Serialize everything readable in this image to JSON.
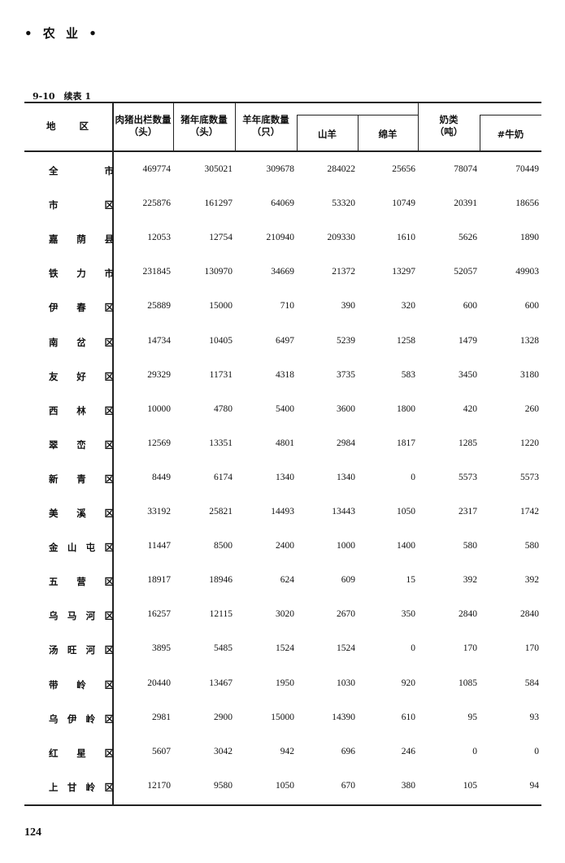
{
  "running_head": "• 农 业 •",
  "caption": "9-10　续表 1",
  "columns": {
    "region": "地　　区",
    "pork_out": "肉猪出栏数量（头）",
    "pigs_end": "猪年底数量（头）",
    "sheep_end": "羊年底数量（只）",
    "goats": "山羊",
    "sheep": "绵羊",
    "milk": "奶类（吨）",
    "cow_milk": "#牛奶"
  },
  "header_lines": {
    "pork_out": [
      "肉猪出栏数量",
      "（头）"
    ],
    "pigs_end": [
      "猪年底数量",
      "（头）"
    ],
    "sheep_end": [
      "羊年底数量",
      "（只）"
    ],
    "milk": [
      "奶类",
      "（吨）"
    ]
  },
  "rows": [
    {
      "region": "全　市",
      "values": [
        "469774",
        "305021",
        "309678",
        "284022",
        "25656",
        "78074",
        "70449"
      ]
    },
    {
      "region": "市　区",
      "values": [
        "225876",
        "161297",
        "64069",
        "53320",
        "10749",
        "20391",
        "18656"
      ]
    },
    {
      "region": "嘉荫县",
      "values": [
        "12053",
        "12754",
        "210940",
        "209330",
        "1610",
        "5626",
        "1890"
      ]
    },
    {
      "region": "铁力市",
      "values": [
        "231845",
        "130970",
        "34669",
        "21372",
        "13297",
        "52057",
        "49903"
      ]
    },
    {
      "region": "伊春区",
      "values": [
        "25889",
        "15000",
        "710",
        "390",
        "320",
        "600",
        "600"
      ]
    },
    {
      "region": "南岔区",
      "values": [
        "14734",
        "10405",
        "6497",
        "5239",
        "1258",
        "1479",
        "1328"
      ]
    },
    {
      "region": "友好区",
      "values": [
        "29329",
        "11731",
        "4318",
        "3735",
        "583",
        "3450",
        "3180"
      ]
    },
    {
      "region": "西林区",
      "values": [
        "10000",
        "4780",
        "5400",
        "3600",
        "1800",
        "420",
        "260"
      ]
    },
    {
      "region": "翠峦区",
      "values": [
        "12569",
        "13351",
        "4801",
        "2984",
        "1817",
        "1285",
        "1220"
      ]
    },
    {
      "region": "新青区",
      "values": [
        "8449",
        "6174",
        "1340",
        "1340",
        "0",
        "5573",
        "5573"
      ]
    },
    {
      "region": "美溪区",
      "values": [
        "33192",
        "25821",
        "14493",
        "13443",
        "1050",
        "2317",
        "1742"
      ]
    },
    {
      "region": "金山屯区",
      "values": [
        "11447",
        "8500",
        "2400",
        "1000",
        "1400",
        "580",
        "580"
      ]
    },
    {
      "region": "五营区",
      "values": [
        "18917",
        "18946",
        "624",
        "609",
        "15",
        "392",
        "392"
      ]
    },
    {
      "region": "乌马河区",
      "values": [
        "16257",
        "12115",
        "3020",
        "2670",
        "350",
        "2840",
        "2840"
      ]
    },
    {
      "region": "汤旺河区",
      "values": [
        "3895",
        "5485",
        "1524",
        "1524",
        "0",
        "170",
        "170"
      ]
    },
    {
      "region": "带岭区",
      "values": [
        "20440",
        "13467",
        "1950",
        "1030",
        "920",
        "1085",
        "584"
      ]
    },
    {
      "region": "乌伊岭区",
      "values": [
        "2981",
        "2900",
        "15000",
        "14390",
        "610",
        "95",
        "93"
      ]
    },
    {
      "region": "红星区",
      "values": [
        "5607",
        "3042",
        "942",
        "696",
        "246",
        "0",
        "0"
      ]
    },
    {
      "region": "上甘岭区",
      "values": [
        "12170",
        "9580",
        "1050",
        "670",
        "380",
        "105",
        "94"
      ]
    }
  ],
  "page_number": "124"
}
